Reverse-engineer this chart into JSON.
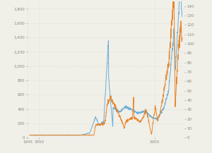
{
  "bg_color": "#f0efe8",
  "plot_bg_color": "#f0efe8",
  "gold_color": "#6baed6",
  "oil_color": "#e6852a",
  "left_ylim": [
    0,
    1900
  ],
  "right_ylim": [
    0,
    145
  ],
  "left_yticks": [
    0,
    200,
    400,
    600,
    800,
    1000,
    1200,
    1400,
    1600,
    1800
  ],
  "right_yticks": [
    0,
    10,
    20,
    30,
    40,
    50,
    60,
    70,
    80,
    90,
    100,
    110,
    120,
    130,
    140
  ],
  "grid_color": "#d0d0c8",
  "line_width": 0.7,
  "tick_fontsize": 4.0,
  "tick_color": "#888880"
}
